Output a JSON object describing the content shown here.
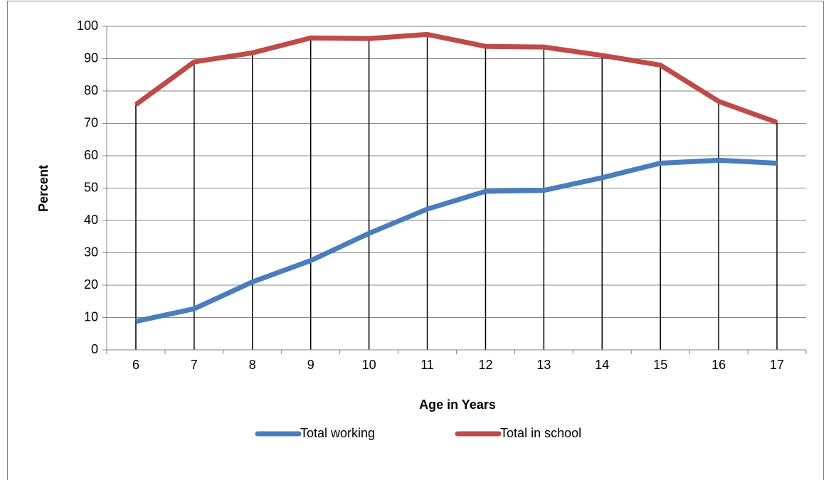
{
  "chart_data": {
    "type": "line",
    "x_label": "Age in Years",
    "y_label": "Percent",
    "categories": [
      "6",
      "7",
      "8",
      "9",
      "10",
      "11",
      "12",
      "13",
      "14",
      "15",
      "16",
      "17"
    ],
    "series": [
      {
        "name": "Total working",
        "color": "#4a7ebb",
        "values": [
          8.8,
          12.7,
          21,
          27.6,
          36,
          43.5,
          49,
          49.3,
          53.2,
          57.7,
          58.6,
          57.7
        ]
      },
      {
        "name": "Total in school",
        "color": "#be4b48",
        "values": [
          75.8,
          89,
          91.8,
          96.4,
          96.2,
          97.5,
          93.8,
          93.6,
          91,
          88,
          76.8,
          70.3
        ]
      }
    ],
    "ylim": [
      0,
      100
    ],
    "yticks": [
      0,
      10,
      20,
      30,
      40,
      50,
      60,
      70,
      80,
      90,
      100
    ],
    "grid": true,
    "drop_lines": true,
    "legend": "bottom"
  }
}
